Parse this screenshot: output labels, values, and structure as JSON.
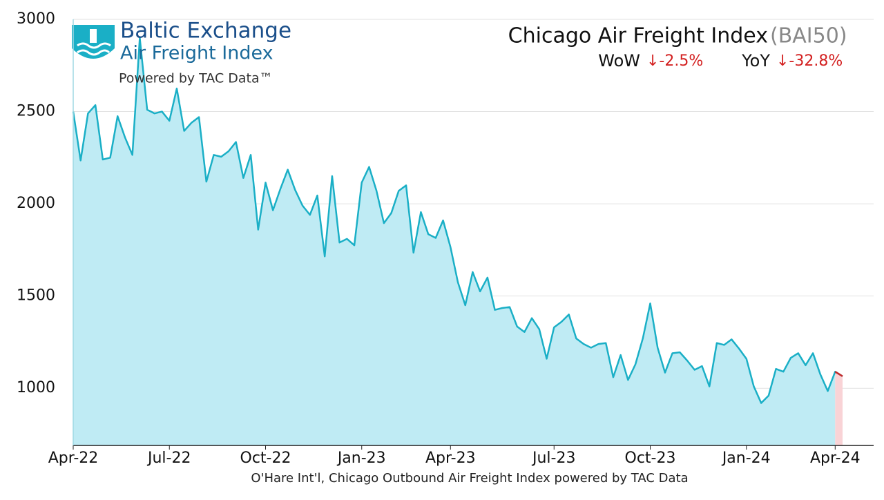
{
  "chart_data": {
    "type": "line",
    "logo_title": "Baltic Exchange",
    "logo_subtitle": "Air Freight Index",
    "logo_note": "Powered by TAC Data™",
    "title": "Chicago Air Freight Index",
    "title_code": "(BAI50)",
    "wow_label": "WoW",
    "wow_change": "↓-2.5%",
    "yoy_label": "YoY",
    "yoy_change": "↓-32.8%",
    "x_label": "O'Hare Int'l, Chicago Outbound Air Freight Index powered by TAC Data",
    "categories": [
      "Apr-22",
      null,
      null,
      null,
      null,
      null,
      null,
      null,
      null,
      null,
      null,
      null,
      null,
      "Jul-22",
      null,
      null,
      null,
      null,
      null,
      null,
      null,
      null,
      null,
      null,
      null,
      null,
      "Oct-22",
      null,
      null,
      null,
      null,
      null,
      null,
      null,
      null,
      null,
      null,
      null,
      null,
      "Jan-23",
      null,
      null,
      null,
      null,
      null,
      null,
      null,
      null,
      null,
      null,
      null,
      "Apr-23",
      null,
      null,
      null,
      null,
      null,
      null,
      null,
      null,
      null,
      null,
      null,
      null,
      null,
      "Jul-23",
      null,
      null,
      null,
      null,
      null,
      null,
      null,
      null,
      null,
      null,
      null,
      null,
      "Oct-23",
      null,
      null,
      null,
      null,
      null,
      null,
      null,
      null,
      null,
      null,
      null,
      null,
      "Jan-24",
      null,
      null,
      null,
      null,
      null,
      null,
      null,
      null,
      null,
      null,
      null,
      "Apr-24",
      null
    ],
    "series": [
      {
        "name": "BAI50",
        "color": "#1aafc6",
        "fill": "#bfebf4",
        "latest_color": "#c62828",
        "latest_fill": "#f9d3d6",
        "values": [
          2500,
          2235,
          2490,
          2535,
          2240,
          2250,
          2475,
          2360,
          2265,
          2900,
          2510,
          2490,
          2500,
          2450,
          2625,
          2395,
          2440,
          2470,
          2120,
          2265,
          2255,
          2285,
          2335,
          2140,
          2265,
          1860,
          2115,
          1965,
          2080,
          2185,
          2075,
          1990,
          1940,
          2045,
          1715,
          2150,
          1790,
          1810,
          1775,
          2115,
          2200,
          2070,
          1895,
          1950,
          2070,
          2100,
          1735,
          1955,
          1835,
          1815,
          1910,
          1765,
          1575,
          1450,
          1630,
          1525,
          1600,
          1425,
          1435,
          1440,
          1335,
          1305,
          1380,
          1320,
          1160,
          1330,
          1360,
          1400,
          1270,
          1240,
          1220,
          1240,
          1245,
          1060,
          1180,
          1045,
          1130,
          1270,
          1460,
          1220,
          1085,
          1190,
          1195,
          1150,
          1100,
          1120,
          1010,
          1245,
          1235,
          1265,
          1215,
          1160,
          1010,
          920,
          960,
          1105,
          1090,
          1165,
          1190,
          1125,
          1190,
          1075,
          985,
          1090,
          1065
        ]
      }
    ],
    "ylim": [
      690,
      3000
    ],
    "yticks": [
      1000,
      1500,
      2000,
      2500,
      3000
    ],
    "grid": true
  }
}
